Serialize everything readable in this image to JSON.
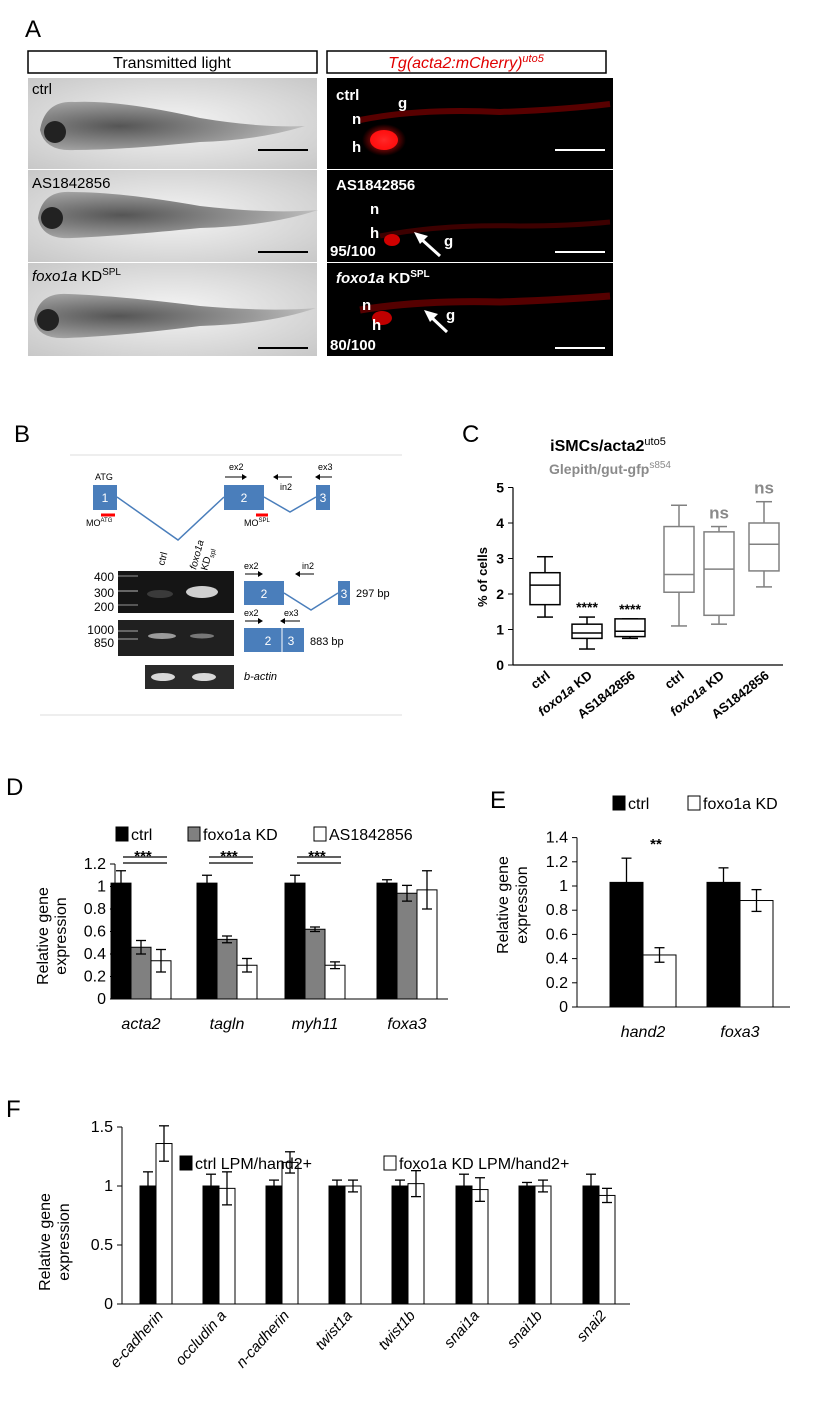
{
  "panels": {
    "A": "A",
    "B": "B",
    "C": "C",
    "D": "D",
    "E": "E",
    "F": "F"
  },
  "panel_a": {
    "header_left": "Transmitted light",
    "header_right": "Tg(acta2:mCherry)",
    "header_right_sup": "uto5",
    "left_labels": {
      "ctrl": "ctrl",
      "as": "AS1842856",
      "kd_italic": "foxo1a",
      "kd_text": " KD",
      "kd_sup": "SPL"
    },
    "right_labels": {
      "ctrl": "ctrl",
      "as": "AS1842856",
      "kd_italic": "foxo1a",
      "kd_text": " KD",
      "kd_sup": "SPL"
    },
    "letters": {
      "n": "n",
      "h": "h",
      "g": "g"
    },
    "fractions": {
      "as": "95/100",
      "kd": "80/100"
    },
    "colors": {
      "fluor": "#e00000",
      "header_red": "#e00000"
    }
  },
  "panel_b": {
    "atg": "ATG",
    "exons": [
      "1",
      "2",
      "3"
    ],
    "primers": {
      "ex2": "ex2",
      "in2": "in2",
      "ex3": "ex3"
    },
    "mo_atg": "MO",
    "mo_atg_sup": "ATG",
    "mo_spl": "MO",
    "mo_spl_sup": "SPL",
    "gel_lanes": {
      "ctrl": "ctrl",
      "kd1": "foxo1a",
      "kd2": "KD",
      "kd2_sup": "spl"
    },
    "ladder1": [
      "400",
      "300",
      "200"
    ],
    "ladder2": [
      "1000",
      "850"
    ],
    "product1": "297 bp",
    "product2": "883 bp",
    "actin": "b-actin",
    "colors": {
      "exon": "#4a7ebb",
      "mo": "#ff0000"
    }
  },
  "chart_c": {
    "type": "box",
    "title1": "iSMCs/acta2",
    "title1_sup": "uto5",
    "title2": "Glepith/gut-gfp",
    "title2_sup": "s854",
    "ylabel": "% of cells",
    "ylim": [
      0,
      5
    ],
    "yticks": [
      "0",
      "1",
      "2",
      "3",
      "4",
      "5"
    ],
    "categories": [
      "ctrl",
      "foxo1a KD",
      "AS1842856",
      "ctrl",
      "foxo1a KD",
      "AS1842856"
    ],
    "italic_flags": [
      false,
      true,
      false,
      false,
      true,
      false
    ],
    "boxes": [
      {
        "min": 1.35,
        "q1": 1.7,
        "median": 2.25,
        "q3": 2.6,
        "max": 3.05,
        "color": "#000000",
        "sig": "****",
        "sig_show": false
      },
      {
        "min": 0.45,
        "q1": 0.75,
        "median": 0.9,
        "q3": 1.15,
        "max": 1.35,
        "color": "#000000",
        "sig": "****",
        "sig_show": true
      },
      {
        "min": 0.75,
        "q1": 0.8,
        "median": 0.95,
        "q3": 1.3,
        "max": 1.3,
        "color": "#000000",
        "sig": "****",
        "sig_show": true
      },
      {
        "min": 1.1,
        "q1": 2.05,
        "median": 2.55,
        "q3": 3.9,
        "max": 4.5,
        "color": "#808080",
        "sig": "ns",
        "sig_show": false
      },
      {
        "min": 1.15,
        "q1": 1.4,
        "median": 2.7,
        "q3": 3.75,
        "max": 3.9,
        "color": "#808080",
        "sig": "ns",
        "sig_show": true
      },
      {
        "min": 2.2,
        "q1": 2.65,
        "median": 3.4,
        "q3": 4.0,
        "max": 4.6,
        "color": "#808080",
        "sig": "ns",
        "sig_show": true
      }
    ]
  },
  "chart_d": {
    "type": "bar",
    "ylabel1": "Relative gene",
    "ylabel2": "expression",
    "ylim": [
      0,
      1.2
    ],
    "yticks": [
      "0",
      "0.2",
      "0.4",
      "0.6",
      "0.8",
      "1",
      "1.2"
    ],
    "categories": [
      "acta2",
      "tagln",
      "myh11",
      "foxa3"
    ],
    "series": [
      {
        "name": "ctrl",
        "color": "#000000",
        "values": [
          1.03,
          1.03,
          1.03,
          1.03
        ],
        "errors": [
          0.11,
          0.07,
          0.07,
          0.03
        ]
      },
      {
        "name": "foxo1a KD",
        "color": "#808080",
        "values": [
          0.46,
          0.53,
          0.62,
          0.94
        ],
        "errors": [
          0.06,
          0.03,
          0.02,
          0.07
        ]
      },
      {
        "name": "AS1842856",
        "color": "#ffffff",
        "values": [
          0.34,
          0.3,
          0.3,
          0.97
        ],
        "errors": [
          0.1,
          0.06,
          0.03,
          0.17
        ]
      }
    ],
    "sig": [
      "***",
      "***",
      "***",
      ""
    ],
    "outline": "#000000"
  },
  "chart_e": {
    "type": "bar",
    "ylabel1": "Relative gene",
    "ylabel2": "expression",
    "ylim": [
      0,
      1.4
    ],
    "yticks": [
      "0",
      "0.2",
      "0.4",
      "0.6",
      "0.8",
      "1",
      "1.2",
      "1.4"
    ],
    "categories": [
      "hand2",
      "foxa3"
    ],
    "series": [
      {
        "name": "ctrl",
        "color": "#000000",
        "values": [
          1.03,
          1.03
        ],
        "errors": [
          0.2,
          0.12
        ]
      },
      {
        "name": "foxo1a KD",
        "color": "#ffffff",
        "values": [
          0.43,
          0.88
        ],
        "errors": [
          0.06,
          0.09
        ]
      }
    ],
    "sig": [
      "**",
      ""
    ]
  },
  "chart_f": {
    "type": "bar",
    "ylabel1": "Relative gene",
    "ylabel2": "expression",
    "ylim": [
      0,
      1.5
    ],
    "yticks": [
      "0",
      "0.5",
      "1",
      "1.5"
    ],
    "categories": [
      "e-cadherin",
      "occludin a",
      "n-cadherin",
      "twist1a",
      "twist1b",
      "snai1a",
      "snai1b",
      "snai2"
    ],
    "series": [
      {
        "name": "ctrl LPM/hand2+",
        "color": "#000000",
        "values": [
          1.0,
          1.0,
          1.0,
          1.0,
          1.0,
          1.0,
          1.0,
          1.0
        ],
        "errors": [
          0.12,
          0.1,
          0.05,
          0.05,
          0.05,
          0.1,
          0.03,
          0.1
        ]
      },
      {
        "name": "foxo1a KD LPM/hand2+",
        "color": "#ffffff",
        "values": [
          1.36,
          0.98,
          1.2,
          1.0,
          1.02,
          0.97,
          1.0,
          0.92
        ],
        "errors": [
          0.15,
          0.14,
          0.09,
          0.05,
          0.11,
          0.1,
          0.05,
          0.06
        ]
      }
    ]
  }
}
